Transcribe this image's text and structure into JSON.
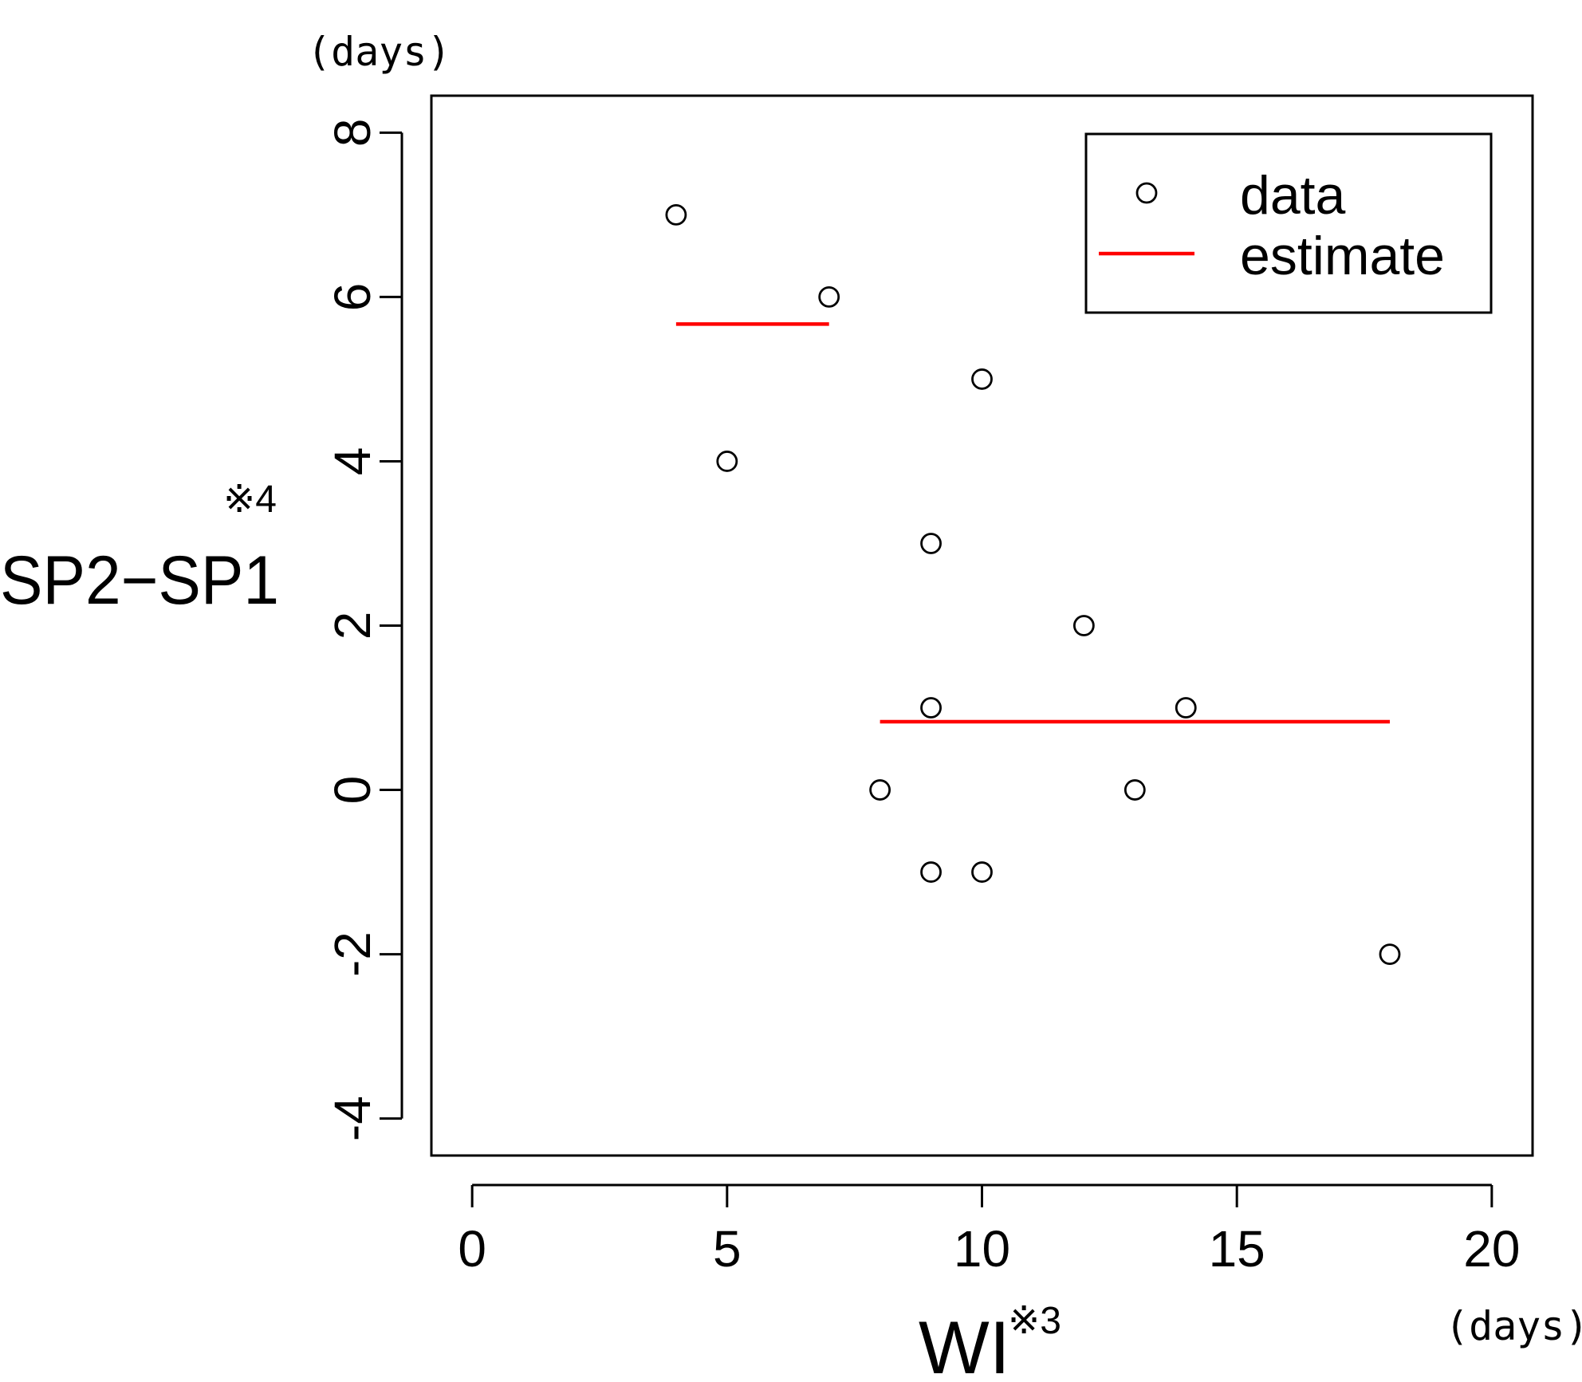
{
  "chart_data": {
    "type": "scatter",
    "xlabel": "WI",
    "xlabel_note": "※3",
    "ylabel": "SP2−SP1",
    "ylabel_note": "※4",
    "x_unit": "(days)",
    "y_unit": "(days)",
    "xlim": [
      -0.8,
      20.8
    ],
    "ylim": [
      -4.45,
      8.45
    ],
    "x_ticks": [
      0,
      5,
      10,
      15,
      20
    ],
    "y_ticks": [
      -4,
      -2,
      0,
      2,
      4,
      6,
      8
    ],
    "grid": false,
    "legend_position": "top-right",
    "series": [
      {
        "name": "data",
        "kind": "points",
        "marker": "open-circle",
        "color": "#000000",
        "points": [
          {
            "x": 4,
            "y": 7
          },
          {
            "x": 5,
            "y": 4
          },
          {
            "x": 7,
            "y": 6
          },
          {
            "x": 8,
            "y": 0
          },
          {
            "x": 9,
            "y": 3
          },
          {
            "x": 9,
            "y": 1
          },
          {
            "x": 9,
            "y": -1
          },
          {
            "x": 10,
            "y": 5
          },
          {
            "x": 10,
            "y": -1
          },
          {
            "x": 12,
            "y": 2
          },
          {
            "x": 13,
            "y": 0
          },
          {
            "x": 14,
            "y": 1
          },
          {
            "x": 18,
            "y": -2
          }
        ]
      },
      {
        "name": "estimate",
        "kind": "segments",
        "color": "#ff0000",
        "segments": [
          {
            "x0": 4,
            "x1": 7,
            "y": 5.67
          },
          {
            "x0": 8,
            "x1": 18,
            "y": 0.83
          }
        ]
      }
    ]
  }
}
